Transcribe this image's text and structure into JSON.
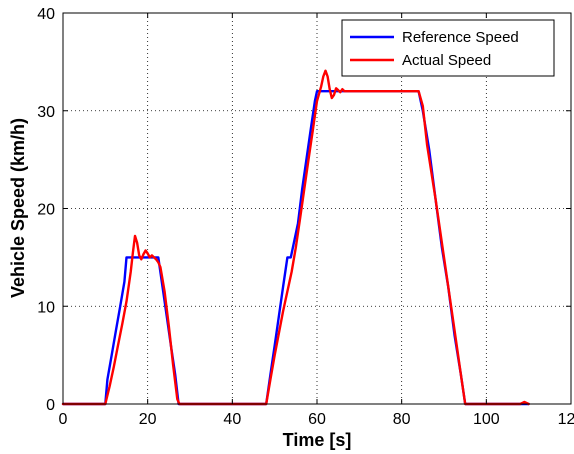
{
  "chart_data": {
    "type": "line",
    "title": "",
    "xlabel": "Time [s]",
    "ylabel": "Vehicle Speed (km/h)",
    "xlim": [
      0,
      120
    ],
    "ylim": [
      0,
      40
    ],
    "xticks": [
      0,
      20,
      40,
      60,
      80,
      100,
      120
    ],
    "yticks": [
      0,
      10,
      20,
      30,
      40
    ],
    "grid": true,
    "legend_position": "top-right",
    "series": [
      {
        "name": "Reference Speed",
        "color": "#0000ff",
        "x": [
          0,
          10,
          10.5,
          11.5,
          12.5,
          13.5,
          14.5,
          15,
          22.5,
          23.5,
          24.5,
          25.5,
          26.5,
          27.3,
          48,
          49,
          50,
          51,
          52,
          53,
          53.8,
          55.5,
          56.5,
          57.5,
          58.5,
          59.5,
          60,
          84,
          85,
          86.5,
          88,
          89.5,
          91,
          92.5,
          94,
          95,
          110
        ],
        "y": [
          0,
          0,
          2.5,
          5,
          7.5,
          10,
          12.5,
          15,
          15,
          12,
          9,
          6,
          3,
          0,
          0,
          3,
          6,
          9,
          12,
          15,
          15,
          18.5,
          22,
          25,
          28,
          31,
          32,
          32,
          30,
          26,
          21,
          16,
          12,
          7,
          3,
          0,
          0
        ]
      },
      {
        "name": "Actual Speed",
        "color": "#ff0000",
        "x": [
          0,
          10,
          11,
          12,
          13,
          14,
          15,
          16,
          16.5,
          17,
          17.5,
          18,
          18.5,
          19,
          19.5,
          20,
          20.5,
          21,
          21.5,
          22,
          22.5,
          23,
          24,
          25,
          26,
          27,
          27.5,
          48,
          49,
          50,
          52,
          54,
          55,
          56,
          57,
          58,
          59,
          60,
          61,
          61.5,
          62,
          62.5,
          63,
          63.5,
          64,
          64.5,
          65,
          65.5,
          66,
          66.5,
          67,
          68,
          70,
          84,
          85,
          86,
          88,
          90,
          92,
          94,
          95,
          108,
          109,
          110
        ],
        "y": [
          0,
          0,
          1.8,
          3.8,
          6,
          8.2,
          10.5,
          13.5,
          15.5,
          17.2,
          16.5,
          15.2,
          14.8,
          15.3,
          15.7,
          15.4,
          15.0,
          15.2,
          15.0,
          14.8,
          14.5,
          14,
          11.5,
          8,
          4,
          0.5,
          0,
          0,
          2.5,
          5,
          9.5,
          13.5,
          16,
          19,
          22,
          25,
          28,
          31,
          32.5,
          33.5,
          34.1,
          33.5,
          32.2,
          31.3,
          31.6,
          32.3,
          32.1,
          31.9,
          32.2,
          32.0,
          32,
          32,
          32,
          32,
          30.5,
          26.5,
          21,
          15,
          9,
          3,
          0,
          0,
          0.2,
          0
        ]
      }
    ]
  }
}
